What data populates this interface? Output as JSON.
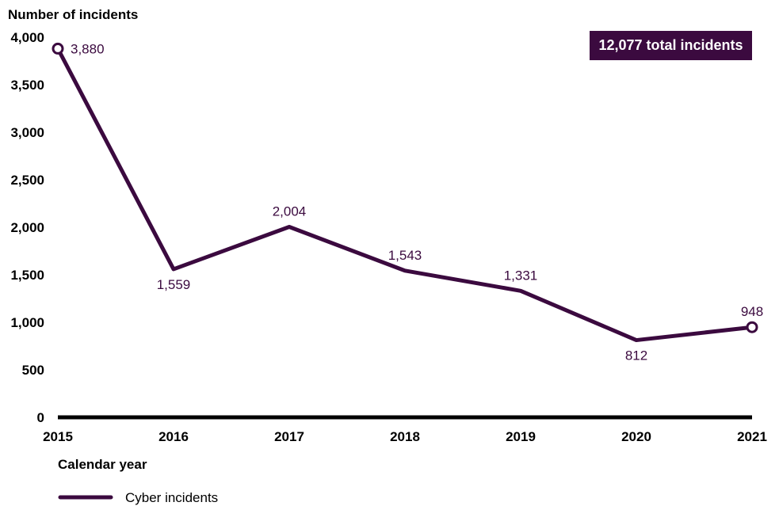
{
  "chart_data": {
    "type": "line",
    "ylabel": "Number of incidents",
    "xlabel": "Calendar year",
    "x": [
      "2015",
      "2016",
      "2017",
      "2018",
      "2019",
      "2020",
      "2021"
    ],
    "y_ticks": [
      "0",
      "500",
      "1,000",
      "1,500",
      "2,000",
      "2,500",
      "3,000",
      "3,500",
      "4,000"
    ],
    "ylim": [
      0,
      4000
    ],
    "series": [
      {
        "name": "Cyber incidents",
        "values": [
          3880,
          1559,
          2004,
          1543,
          1331,
          812,
          948
        ],
        "labels": [
          "3,880",
          "1,559",
          "2,004",
          "1,543",
          "1,331",
          "812",
          "948"
        ]
      }
    ],
    "annotation": "12,077 total incidents",
    "grid": false,
    "legend_position": "bottom-left",
    "colors": {
      "line": "#3b0a3f",
      "badge_bg": "#3b0a3f",
      "baseline": "#000000"
    }
  }
}
